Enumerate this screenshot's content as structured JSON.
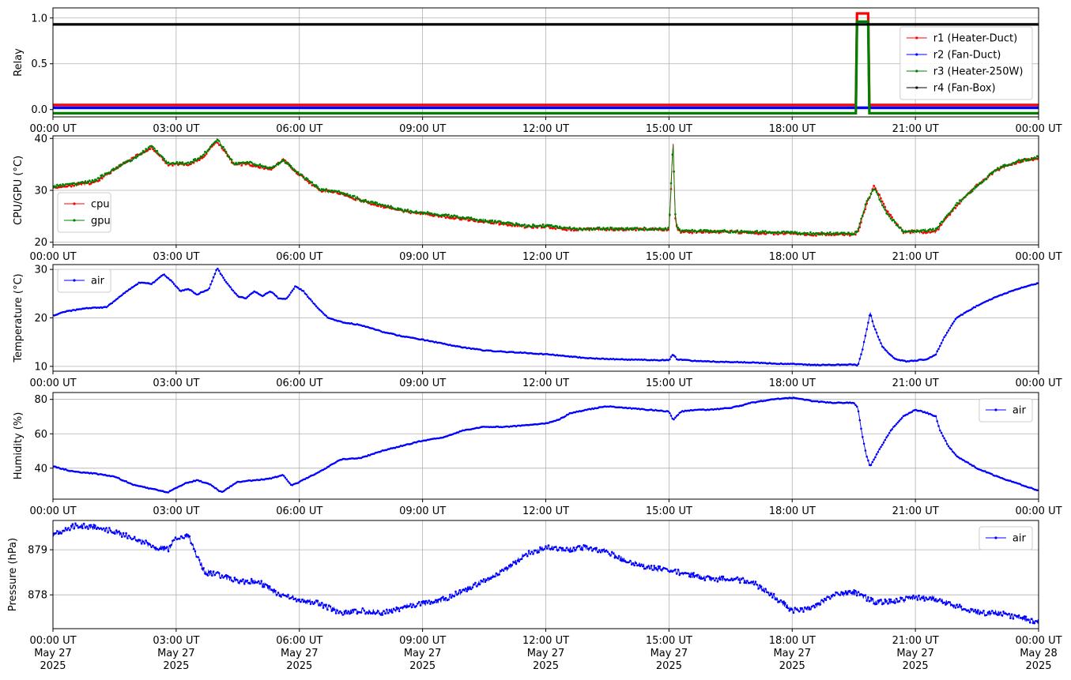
{
  "chart_data": [
    {
      "type": "line",
      "ylabel": "Relay",
      "x_ticks": [
        "00:00 UT",
        "03:00 UT",
        "06:00 UT",
        "09:00 UT",
        "12:00 UT",
        "15:00 UT",
        "18:00 UT",
        "21:00 UT",
        "00:00 UT"
      ],
      "yticks": [
        0.0,
        0.5,
        1.0
      ],
      "ytick_labels": [
        "0.0",
        "0.5",
        "1.0"
      ],
      "ylim": [
        -0.08,
        1.11
      ],
      "xlim_hours": [
        0,
        24
      ],
      "grid": true,
      "legend": "upper right",
      "series": [
        {
          "name": "r1 (Heater-Duct)",
          "color": "#ff0000",
          "x": [
            0,
            19.55,
            19.58,
            19.85,
            19.88,
            24
          ],
          "y": [
            0.05,
            0.05,
            1.05,
            1.05,
            0.05,
            0.05
          ]
        },
        {
          "name": "r2 (Fan-Duct)",
          "color": "#0000ff",
          "x": [
            0,
            24
          ],
          "y": [
            0.02,
            0.02
          ]
        },
        {
          "name": "r3 (Heater-250W)",
          "color": "#008000",
          "x": [
            0,
            19.55,
            19.58,
            19.85,
            19.88,
            24
          ],
          "y": [
            -0.04,
            -0.04,
            0.96,
            0.96,
            -0.04,
            -0.04
          ]
        },
        {
          "name": "r4 (Fan-Box)",
          "color": "#000000",
          "x": [
            0,
            24
          ],
          "y": [
            0.93,
            0.93
          ]
        }
      ]
    },
    {
      "type": "line",
      "ylabel": "CPU/GPU (°C)",
      "x_ticks": [
        "00:00 UT",
        "03:00 UT",
        "06:00 UT",
        "09:00 UT",
        "12:00 UT",
        "15:00 UT",
        "18:00 UT",
        "21:00 UT",
        "00:00 UT"
      ],
      "yticks": [
        20,
        30,
        40
      ],
      "ytick_labels": [
        "20",
        "30",
        "40"
      ],
      "ylim": [
        19.5,
        40.5
      ],
      "xlim_hours": [
        0,
        24
      ],
      "grid": true,
      "legend": "center left",
      "series": [
        {
          "name": "cpu",
          "color": "#ff0000",
          "x": [
            0,
            0.5,
            1,
            1.5,
            2,
            2.4,
            2.8,
            3.3,
            3.6,
            4,
            4.4,
            4.8,
            5.3,
            5.6,
            6,
            6.5,
            7,
            7.5,
            8,
            8.5,
            9,
            9.5,
            10,
            10.5,
            11,
            11.5,
            12,
            12.5,
            13,
            13.5,
            14,
            14.5,
            15,
            15.05,
            15.1,
            15.15,
            15.2,
            15.3,
            16,
            16.5,
            17,
            17.5,
            18,
            18.5,
            19,
            19.5,
            19.6,
            19.8,
            20,
            20.3,
            20.7,
            21,
            21.5,
            22,
            22.5,
            23,
            23.5,
            24
          ],
          "y": [
            30.5,
            31,
            31.5,
            34,
            36.5,
            38.3,
            35,
            35,
            36,
            39.5,
            35,
            35,
            34,
            36,
            33,
            30,
            29.5,
            28,
            27,
            26,
            25.5,
            25,
            24.5,
            24,
            23.5,
            23,
            23,
            22.5,
            22.5,
            22.5,
            22.5,
            22.5,
            22.5,
            30,
            39.8,
            25,
            22.5,
            22,
            22,
            22,
            21.8,
            21.7,
            21.7,
            21.5,
            21.5,
            21.5,
            22,
            27,
            31,
            26,
            22,
            22,
            22,
            27,
            31,
            34,
            35.5,
            36.2
          ]
        },
        {
          "name": "gpu",
          "color": "#008000",
          "x": [
            0,
            0.5,
            1,
            1.5,
            2,
            2.4,
            2.8,
            3.3,
            3.6,
            4,
            4.4,
            4.8,
            5.3,
            5.6,
            6,
            6.5,
            7,
            7.5,
            8,
            8.5,
            9,
            9.5,
            10,
            10.5,
            11,
            11.5,
            12,
            12.5,
            13,
            13.5,
            14,
            14.5,
            15,
            15.05,
            15.1,
            15.15,
            15.2,
            15.3,
            16,
            16.5,
            17,
            17.5,
            18,
            18.5,
            19,
            19.5,
            19.6,
            19.8,
            20,
            20.3,
            20.7,
            21,
            21.5,
            22,
            22.5,
            23,
            23.5,
            24
          ],
          "y": [
            30.8,
            31.2,
            31.8,
            34.2,
            36.3,
            38.5,
            35.2,
            35.2,
            36.3,
            39.8,
            35.2,
            35.3,
            34.2,
            35.8,
            33.2,
            30.2,
            29.7,
            28.2,
            27.2,
            26.2,
            25.7,
            25.2,
            24.7,
            24.2,
            23.7,
            23.2,
            23.2,
            22.7,
            22.6,
            22.6,
            22.6,
            22.6,
            22.6,
            31,
            39.3,
            25.5,
            22.7,
            22.2,
            22.1,
            22.1,
            22,
            21.9,
            21.9,
            21.7,
            21.7,
            21.7,
            22.2,
            27.5,
            30.5,
            25.5,
            22.2,
            22.2,
            22.4,
            27.3,
            30.8,
            34.2,
            35.6,
            36.4
          ]
        }
      ]
    },
    {
      "type": "line",
      "ylabel": "Temperature (°C)",
      "x_ticks": [
        "00:00 UT",
        "03:00 UT",
        "06:00 UT",
        "09:00 UT",
        "12:00 UT",
        "15:00 UT",
        "18:00 UT",
        "21:00 UT",
        "00:00 UT"
      ],
      "yticks": [
        10,
        20,
        30
      ],
      "ytick_labels": [
        "10",
        "20",
        "30"
      ],
      "ylim": [
        9,
        31
      ],
      "xlim_hours": [
        0,
        24
      ],
      "grid": true,
      "legend": "upper left",
      "series": [
        {
          "name": "air",
          "color": "#0000ff",
          "x": [
            0,
            0.3,
            0.8,
            1.3,
            1.8,
            2.1,
            2.4,
            2.7,
            2.9,
            3.1,
            3.3,
            3.5,
            3.8,
            4,
            4.2,
            4.5,
            4.7,
            4.9,
            5.1,
            5.3,
            5.5,
            5.7,
            5.9,
            6.1,
            6.4,
            6.7,
            7,
            7.5,
            8,
            8.5,
            9,
            9.5,
            10,
            10.5,
            11,
            11.5,
            12,
            12.5,
            13,
            13.5,
            14,
            14.5,
            15,
            15.1,
            15.2,
            15.5,
            16,
            16.5,
            17,
            17.5,
            18,
            18.5,
            19,
            19.5,
            19.6,
            19.7,
            19.8,
            19.9,
            20,
            20.2,
            20.5,
            20.8,
            21,
            21.3,
            21.5,
            21.7,
            22,
            22.5,
            23,
            23.5,
            24
          ],
          "y": [
            20.5,
            21.3,
            22,
            22.2,
            25.5,
            27.3,
            27,
            29,
            27.5,
            25.5,
            26,
            24.8,
            26,
            30.3,
            27.5,
            24.5,
            24,
            25.5,
            24.5,
            25.5,
            24,
            24,
            26.5,
            25.5,
            22.5,
            20,
            19.2,
            18.5,
            17.2,
            16.2,
            15.5,
            14.7,
            13.9,
            13.3,
            13,
            12.8,
            12.5,
            12.1,
            11.7,
            11.5,
            11.4,
            11.3,
            11.3,
            12.5,
            11.4,
            11.2,
            11,
            10.9,
            10.8,
            10.6,
            10.5,
            10.3,
            10.3,
            10.4,
            10.2,
            13,
            17,
            21,
            18,
            14,
            11.5,
            11,
            11.2,
            11.5,
            12.5,
            16,
            20,
            22.5,
            24.5,
            26,
            27.2
          ]
        }
      ]
    },
    {
      "type": "line",
      "ylabel": "Humidity (%)",
      "x_ticks": [
        "00:00 UT",
        "03:00 UT",
        "06:00 UT",
        "09:00 UT",
        "12:00 UT",
        "15:00 UT",
        "18:00 UT",
        "21:00 UT",
        "00:00 UT"
      ],
      "yticks": [
        40,
        60,
        80
      ],
      "ytick_labels": [
        "40",
        "60",
        "80"
      ],
      "ylim": [
        22,
        84
      ],
      "xlim_hours": [
        0,
        24
      ],
      "grid": true,
      "legend": "upper right",
      "series": [
        {
          "name": "air",
          "color": "#0000ff",
          "x": [
            0,
            0.5,
            1,
            1.5,
            2,
            2.4,
            2.8,
            3.2,
            3.5,
            3.8,
            4.1,
            4.5,
            4.9,
            5.3,
            5.6,
            5.8,
            6,
            6.5,
            7,
            7.5,
            8,
            8.5,
            9,
            9.5,
            10,
            10.5,
            11,
            11.5,
            12,
            12.3,
            12.6,
            13,
            13.5,
            14,
            14.5,
            15,
            15.1,
            15.3,
            15.7,
            16,
            16.5,
            17,
            17.5,
            18,
            18.5,
            19,
            19.5,
            19.6,
            19.7,
            19.8,
            19.9,
            20.1,
            20.4,
            20.7,
            21,
            21.3,
            21.5,
            21.6,
            21.8,
            22,
            22.5,
            23,
            23.5,
            24
          ],
          "y": [
            41,
            38,
            37,
            35,
            30,
            28,
            26,
            31,
            33,
            31,
            26,
            32,
            33,
            34,
            36,
            30,
            32,
            38,
            45,
            46,
            50,
            53,
            56,
            58,
            62,
            64,
            64,
            65,
            66,
            68,
            72,
            74,
            76,
            75,
            74,
            73,
            68,
            73,
            74,
            74,
            75,
            78,
            80,
            81,
            79,
            78,
            78,
            75,
            60,
            48,
            41,
            50,
            62,
            70,
            74,
            72,
            70,
            62,
            53,
            47,
            40,
            35,
            31,
            27
          ]
        }
      ]
    },
    {
      "type": "line",
      "ylabel": "Pressure (hPa)",
      "x_ticks": [
        "00:00 UT\nMay 27\n2025",
        "03:00 UT\nMay 27\n2025",
        "06:00 UT\nMay 27\n2025",
        "09:00 UT\nMay 27\n2025",
        "12:00 UT\nMay 27\n2025",
        "15:00 UT\nMay 27\n2025",
        "18:00 UT\nMay 27\n2025",
        "21:00 UT\nMay 27\n2025",
        "00:00 UT\nMay 28\n2025"
      ],
      "yticks": [
        878,
        879
      ],
      "ytick_labels": [
        "878",
        "879"
      ],
      "ylim": [
        877.25,
        879.65
      ],
      "xlim_hours": [
        0,
        24
      ],
      "grid": true,
      "legend": "upper right",
      "series": [
        {
          "name": "air",
          "color": "#0000ff",
          "x": [
            0,
            0.3,
            0.6,
            1,
            1.5,
            2,
            2.5,
            2.8,
            3,
            3.3,
            3.5,
            3.7,
            4,
            4.5,
            5,
            5.5,
            6,
            6.5,
            7,
            7.5,
            8,
            8.5,
            9,
            9.5,
            10,
            10.5,
            11,
            11.5,
            12,
            12.5,
            13,
            13.5,
            14,
            14.5,
            15,
            15.5,
            16,
            16.5,
            17,
            17.5,
            18,
            18.5,
            19,
            19.5,
            20,
            20.5,
            21,
            21.5,
            22,
            22.5,
            23,
            23.5,
            24
          ],
          "y": [
            879.35,
            879.45,
            879.55,
            879.5,
            879.4,
            879.25,
            879.05,
            879.0,
            879.25,
            879.3,
            878.9,
            878.5,
            878.45,
            878.3,
            878.3,
            878.0,
            877.9,
            877.8,
            877.6,
            877.65,
            877.6,
            877.7,
            877.8,
            877.9,
            878.1,
            878.3,
            878.55,
            878.9,
            879.05,
            879.0,
            879.05,
            878.95,
            878.75,
            878.6,
            878.55,
            878.45,
            878.35,
            878.35,
            878.3,
            878.0,
            877.65,
            877.7,
            878.0,
            878.05,
            877.85,
            877.85,
            877.95,
            877.9,
            877.75,
            877.6,
            877.6,
            877.5,
            877.4
          ]
        }
      ]
    }
  ]
}
